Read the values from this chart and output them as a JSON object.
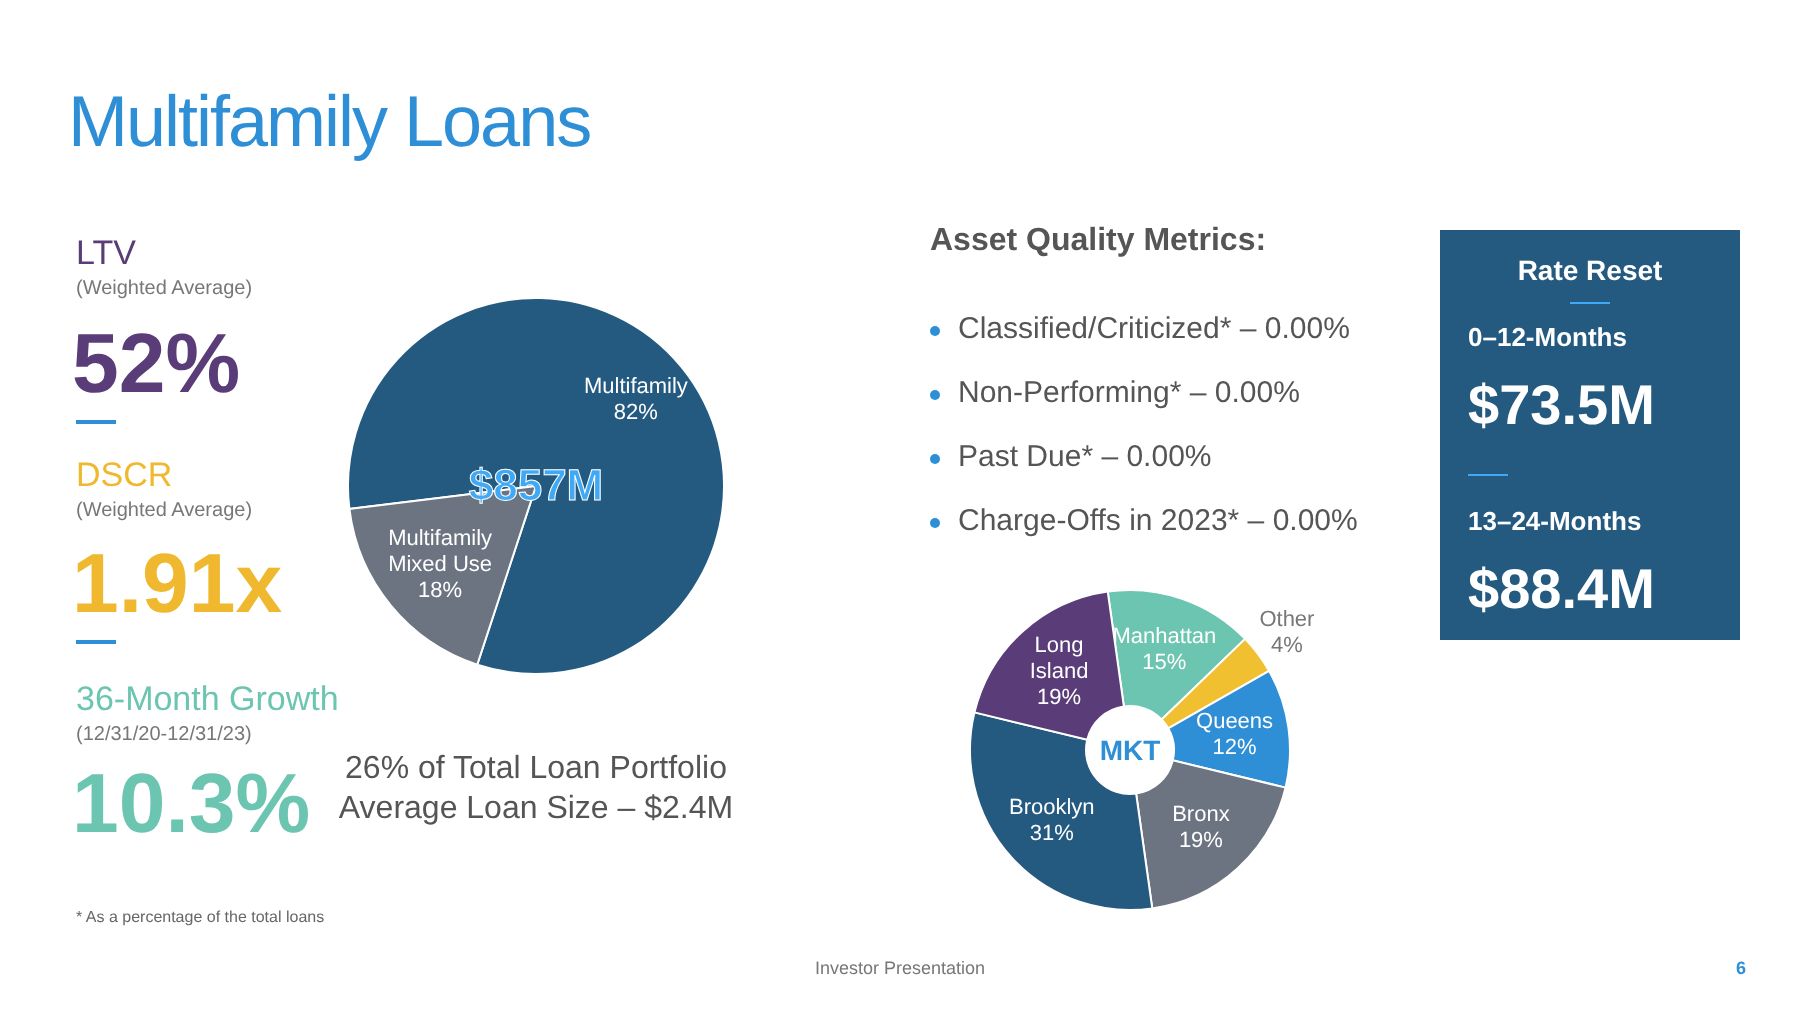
{
  "chart_data": [
    {
      "type": "other",
      "title": "Multifamily Loans",
      "annotations": [
        "LTV",
        "(Weighted Average)",
        "52%",
        "DSCR",
        "(Weighted Average)",
        "1.91x",
        "36-Month Growth",
        "(12/31/20-12/31/23)",
        "10.3%",
        "* As a percentage of the total loans",
        "Investor Presentation",
        "6"
      ]
    },
    {
      "type": "pie",
      "categories": [
        "Multifamily",
        "Multifamily Mixed Use"
      ],
      "values": [
        82,
        18
      ],
      "colors": [
        "#245a80",
        "#6b7480"
      ],
      "value_labels": [
        "82%",
        "18%"
      ],
      "annotations": [
        "$857M",
        "26% of Total Loan Portfolio",
        "Average Loan Size – $2.4M"
      ]
    },
    {
      "type": "other",
      "title": "Asset Quality Metrics:",
      "annotations": [
        "Classified/Criticized* – 0.00%",
        "Non-Performing* – 0.00%",
        "Past Due* – 0.00%",
        "Charge-Offs in 2023* – 0.00%"
      ]
    },
    {
      "type": "donut",
      "categories": [
        "Manhattan",
        "Other",
        "Queens",
        "Bronx",
        "Brooklyn",
        "Long Island"
      ],
      "values": [
        15,
        4,
        12,
        19,
        31,
        19
      ],
      "colors": [
        "#6cc5b0",
        "#f0c030",
        "#2e8fd6",
        "#6b7480",
        "#245a80",
        "#5a3d78"
      ],
      "value_labels": [
        "15%",
        "4%",
        "12%",
        "19%",
        "31%",
        "19%"
      ],
      "annotations": [
        "MKT"
      ]
    },
    {
      "type": "other",
      "title": "Rate Reset",
      "annotations": [
        "0–12-Months",
        "$73.5M",
        "13–24-Months",
        "$88.4M"
      ]
    }
  ]
}
